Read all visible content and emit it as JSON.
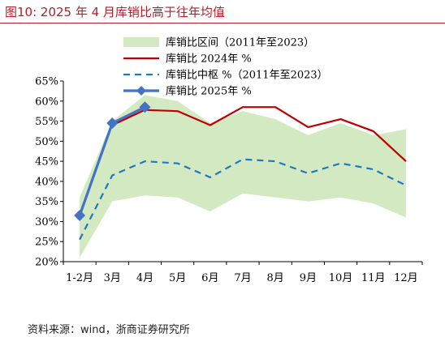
{
  "figure": {
    "title": "图10:  2025 年 4 月库销比高于往年均值",
    "source": "资料来源：wind，浙商证券研究所"
  },
  "colors": {
    "band": "#d3e9c2",
    "line2024": "#c00000",
    "median": "#1f77c4",
    "line2025": "#4472c4",
    "title": "#b22028"
  },
  "chart_data": {
    "type": "line",
    "categories": [
      "1-2月",
      "3月",
      "4月",
      "5月",
      "6月",
      "7月",
      "8月",
      "9月",
      "10月",
      "11月",
      "12月"
    ],
    "ylim": [
      20,
      65
    ],
    "yticks": [
      "20%",
      "25%",
      "30%",
      "35%",
      "40%",
      "45%",
      "50%",
      "55%",
      "60%",
      "65%"
    ],
    "ytick_values": [
      20,
      25,
      30,
      35,
      40,
      45,
      50,
      55,
      60,
      65
    ],
    "legend_position": "top-right",
    "band": {
      "name": "库销比区间（2011年至2023）",
      "upper": [
        36,
        55,
        61.5,
        60,
        54.5,
        57.5,
        55.5,
        51.5,
        54.5,
        51.5,
        53
      ],
      "lower": [
        21,
        35,
        36.5,
        36,
        32.5,
        37,
        36,
        35,
        36,
        34.5,
        31
      ]
    },
    "series": [
      {
        "name": "库销比 2024年 %",
        "values": [
          null,
          54,
          57.8,
          57.5,
          54,
          58.5,
          58.5,
          53.5,
          55.5,
          52.5,
          45
        ]
      },
      {
        "name": "库销比中枢 %（2011年至2023）",
        "values": [
          25.5,
          41.5,
          45,
          44.5,
          41,
          45.5,
          45,
          42,
          44.5,
          43,
          39
        ]
      },
      {
        "name": "库销比 2025年 %",
        "values": [
          31.5,
          54.5,
          58.5,
          null,
          null,
          null,
          null,
          null,
          null,
          null,
          null
        ]
      }
    ]
  }
}
